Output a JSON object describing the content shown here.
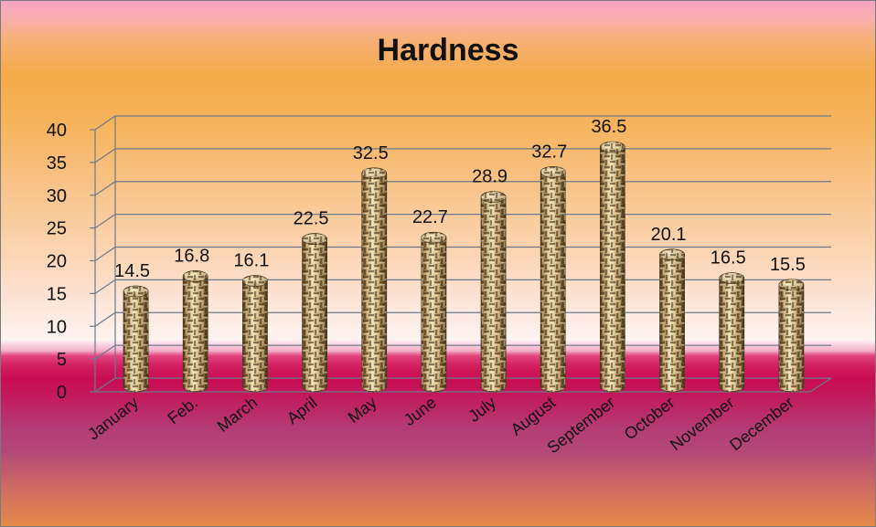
{
  "chart_data": {
    "type": "bar",
    "title": "Hardness",
    "categories": [
      "January",
      "Feb.",
      "March",
      "April",
      "May",
      "June",
      "July",
      "August",
      "September",
      "October",
      "November",
      "December"
    ],
    "values": [
      14.5,
      16.8,
      16.1,
      22.5,
      32.5,
      22.7,
      28.9,
      32.7,
      36.5,
      20.1,
      16.5,
      15.5
    ],
    "data_labels": [
      "14.5",
      "16.8",
      "16.1",
      "22.5",
      "32.5",
      "22.7",
      "28.9",
      "32.7",
      "36.5",
      "20.1",
      "16.5",
      "15.5"
    ],
    "xlabel": "",
    "ylabel": "",
    "ylim": [
      0,
      40
    ],
    "yticks": [
      0,
      5,
      10,
      15,
      20,
      25,
      30,
      35,
      40
    ],
    "grid": true,
    "legend": "none",
    "bar_shape": "3d-cylinder",
    "bar_texture": "woven-basket",
    "colors": {
      "bar": "#b99d68",
      "bar_dark": "#6b5430",
      "bar_light": "#eadcb2",
      "grid": "#6b7a8c",
      "text": "#111111"
    }
  }
}
